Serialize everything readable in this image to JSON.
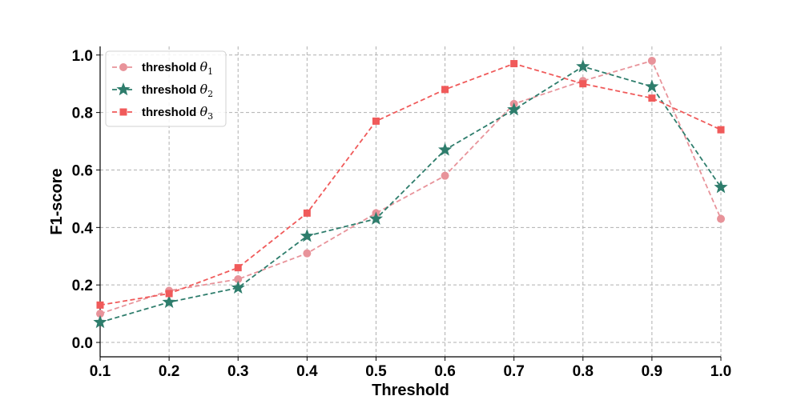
{
  "chart_data": {
    "type": "line",
    "title": "",
    "xlabel": "Threshold",
    "ylabel": "F1-score",
    "x": [
      0.1,
      0.2,
      0.3,
      0.4,
      0.5,
      0.6,
      0.7,
      0.8,
      0.9,
      1.0
    ],
    "xlim": [
      0.1,
      1.0
    ],
    "ylim": [
      -0.05,
      1.03
    ],
    "xticks": [
      "0.1",
      "0.2",
      "0.3",
      "0.4",
      "0.5",
      "0.6",
      "0.7",
      "0.8",
      "0.9",
      "1.0"
    ],
    "yticks": [
      "0.0",
      "0.2",
      "0.4",
      "0.6",
      "0.8",
      "1.0"
    ],
    "grid": true,
    "legend_position": "top-left",
    "series": [
      {
        "name": "threshold θ1",
        "legend_prefix": "threshold ",
        "legend_symbol": "θ",
        "legend_subscript": "1",
        "color": "#e8939a",
        "marker": "circle",
        "values": [
          0.1,
          0.18,
          0.22,
          0.31,
          0.45,
          0.58,
          0.83,
          0.91,
          0.98,
          0.43
        ]
      },
      {
        "name": "threshold θ2",
        "legend_prefix": "threshold ",
        "legend_symbol": "θ",
        "legend_subscript": "2",
        "color": "#2e7d6c",
        "marker": "star",
        "values": [
          0.07,
          0.14,
          0.19,
          0.37,
          0.43,
          0.67,
          0.81,
          0.96,
          0.89,
          0.54
        ]
      },
      {
        "name": "threshold θ3",
        "legend_prefix": "threshold ",
        "legend_symbol": "θ",
        "legend_subscript": "3",
        "color": "#f05a5a",
        "marker": "square",
        "values": [
          0.13,
          0.17,
          0.26,
          0.45,
          0.77,
          0.88,
          0.97,
          0.9,
          0.85,
          0.74
        ]
      }
    ]
  }
}
